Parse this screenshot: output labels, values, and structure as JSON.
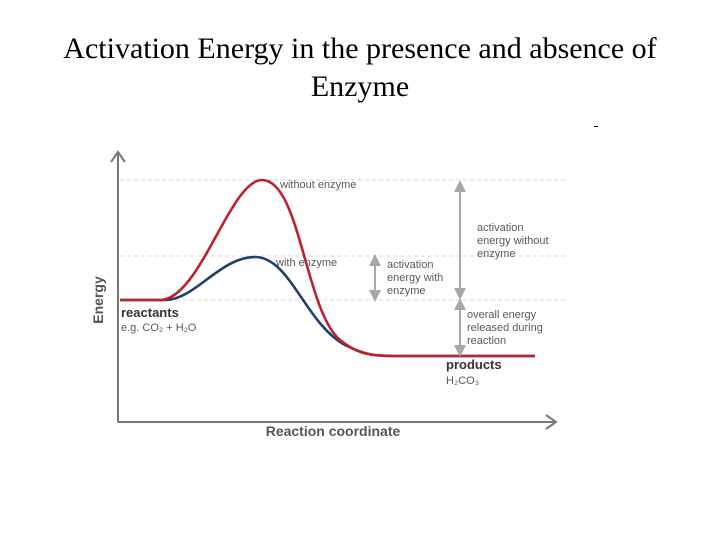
{
  "title": {
    "line1": "Activation Energy in the presence and absence of",
    "line2": "Enzyme"
  },
  "diagram": {
    "y_axis_label": "Energy",
    "x_axis_label": "Reaction coordinate",
    "curve_without_enzyme_label": "without enzyme",
    "curve_with_enzyme_label": "with enzyme",
    "reactants_label": "reactants",
    "reactants_example": "e.g. CO₂ + H₂O",
    "products_label": "products",
    "products_example": "H₂CO₃",
    "activation_without": [
      "activation",
      "energy without",
      "enzyme"
    ],
    "activation_with": [
      "activation",
      "energy with",
      "enzyme"
    ],
    "energy_released": [
      "overall energy",
      "released during",
      "reaction"
    ]
  },
  "colors": {
    "without_enzyme_curve": "#c0202a",
    "with_enzyme_curve": "#1f3f6e",
    "axes": "#777777",
    "guide_lines": "#d6d6d6",
    "arrows": "#a8a8a8"
  }
}
